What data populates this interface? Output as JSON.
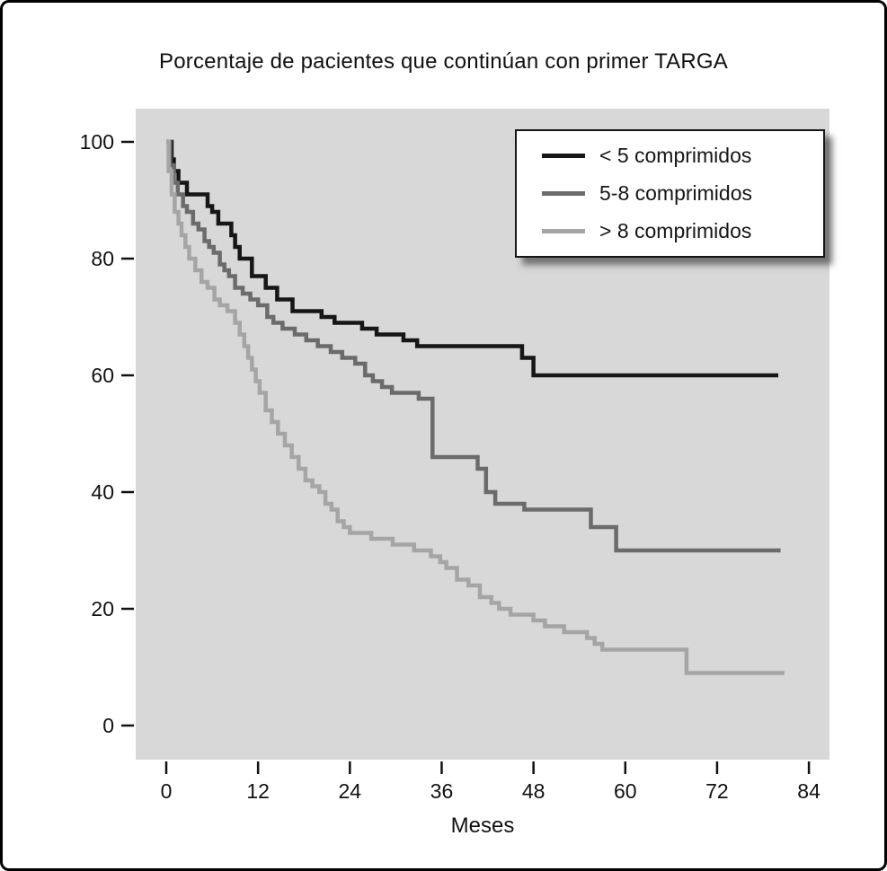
{
  "chart_data": {
    "type": "line",
    "subtype": "kaplan-meier-step",
    "title": "Porcentaje de pacientes que continúan con primer TARGA",
    "xlabel": "Meses",
    "ylabel": "",
    "xlim": [
      -4,
      86.7
    ],
    "ylim": [
      -5.8,
      105.7
    ],
    "x_ticks": [
      0,
      12,
      24,
      36,
      48,
      60,
      72,
      84
    ],
    "y_ticks": [
      0,
      20,
      40,
      60,
      80,
      100
    ],
    "grid": false,
    "legend_position": "upper-right",
    "plot_bg": "#d8d8d8",
    "series": [
      {
        "name": "< 5 comprimidos",
        "color": "#161616",
        "points": [
          [
            0,
            100
          ],
          [
            0.7,
            97
          ],
          [
            1,
            95
          ],
          [
            1.6,
            93
          ],
          [
            2.7,
            91
          ],
          [
            5.4,
            89
          ],
          [
            6,
            88
          ],
          [
            6.8,
            86
          ],
          [
            8.5,
            84
          ],
          [
            9,
            82
          ],
          [
            9.6,
            80
          ],
          [
            11.2,
            77
          ],
          [
            13,
            75
          ],
          [
            14.5,
            73
          ],
          [
            16.5,
            71
          ],
          [
            20.3,
            70
          ],
          [
            22,
            69
          ],
          [
            25.6,
            68
          ],
          [
            27.5,
            67
          ],
          [
            31,
            66
          ],
          [
            32.8,
            65
          ],
          [
            46.5,
            63
          ],
          [
            48,
            60
          ],
          [
            80,
            60
          ]
        ]
      },
      {
        "name": "5-8 comprimidos",
        "color": "#6b6b6b",
        "points": [
          [
            0,
            100
          ],
          [
            0.5,
            96
          ],
          [
            1,
            93
          ],
          [
            1.5,
            91
          ],
          [
            2.2,
            89
          ],
          [
            2.7,
            88
          ],
          [
            3.5,
            86
          ],
          [
            4.2,
            85
          ],
          [
            5,
            83
          ],
          [
            5.6,
            82
          ],
          [
            6.2,
            81
          ],
          [
            7,
            79
          ],
          [
            7.6,
            78
          ],
          [
            8.2,
            77
          ],
          [
            9,
            75
          ],
          [
            10,
            74
          ],
          [
            11,
            73
          ],
          [
            12,
            72
          ],
          [
            13.2,
            70
          ],
          [
            14,
            69
          ],
          [
            15.2,
            68
          ],
          [
            16.8,
            67
          ],
          [
            18.3,
            66
          ],
          [
            19.8,
            65
          ],
          [
            21.5,
            64
          ],
          [
            23,
            63
          ],
          [
            24.7,
            62
          ],
          [
            26,
            60
          ],
          [
            27,
            59
          ],
          [
            28.2,
            58
          ],
          [
            29.5,
            57
          ],
          [
            33,
            56
          ],
          [
            34.8,
            46
          ],
          [
            40.7,
            44
          ],
          [
            41.8,
            40
          ],
          [
            43,
            38
          ],
          [
            46.8,
            37
          ],
          [
            55.5,
            34
          ],
          [
            58.8,
            30
          ],
          [
            80.3,
            30
          ]
        ]
      },
      {
        "name": "> 8 comprimidos",
        "color": "#a5a5a5",
        "points": [
          [
            0,
            100
          ],
          [
            0.3,
            95
          ],
          [
            0.7,
            91
          ],
          [
            1.1,
            88
          ],
          [
            1.6,
            86
          ],
          [
            2,
            84
          ],
          [
            2.5,
            82
          ],
          [
            3,
            80
          ],
          [
            3.8,
            78
          ],
          [
            4.6,
            76
          ],
          [
            5.4,
            75
          ],
          [
            6.3,
            73
          ],
          [
            7,
            72
          ],
          [
            8,
            71
          ],
          [
            9,
            69
          ],
          [
            9.6,
            67
          ],
          [
            10.2,
            65
          ],
          [
            10.7,
            63
          ],
          [
            11.2,
            61
          ],
          [
            11.7,
            59
          ],
          [
            12.2,
            57
          ],
          [
            13,
            54
          ],
          [
            13.8,
            52
          ],
          [
            14.6,
            50
          ],
          [
            15.5,
            48
          ],
          [
            16.4,
            46
          ],
          [
            17.3,
            44
          ],
          [
            18.2,
            42
          ],
          [
            19.1,
            41
          ],
          [
            20,
            40
          ],
          [
            20.8,
            38
          ],
          [
            21.6,
            37
          ],
          [
            22.4,
            35
          ],
          [
            23.2,
            34
          ],
          [
            24,
            33
          ],
          [
            26.8,
            32
          ],
          [
            29.6,
            31
          ],
          [
            32.4,
            30
          ],
          [
            34.6,
            29
          ],
          [
            35.8,
            28
          ],
          [
            36.6,
            27
          ],
          [
            38,
            25
          ],
          [
            39.5,
            24
          ],
          [
            41,
            22
          ],
          [
            42.5,
            21
          ],
          [
            43.5,
            20
          ],
          [
            45,
            19
          ],
          [
            48,
            18
          ],
          [
            49.5,
            17
          ],
          [
            52,
            16
          ],
          [
            55,
            15
          ],
          [
            56,
            14
          ],
          [
            57,
            13
          ],
          [
            68,
            9
          ],
          [
            80.8,
            9
          ]
        ]
      }
    ]
  }
}
